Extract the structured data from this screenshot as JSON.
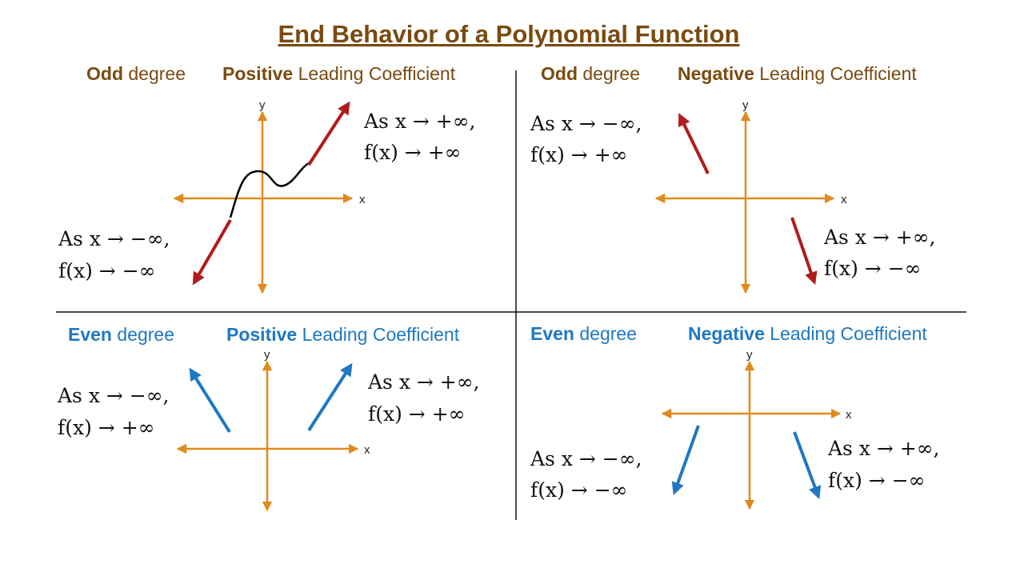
{
  "title": "End Behavior of a Polynomial Function",
  "panels": [
    {
      "degree_bold": "Odd",
      "degree_rest": "degree",
      "coef_bold": "Positive",
      "coef_rest": "Leading Coefficient",
      "x_axis": "x",
      "y_axis": "y",
      "left_note": [
        "As x → −∞,",
        "f(x) → −∞"
      ],
      "right_note": [
        "As x → +∞,",
        "f(x) → +∞"
      ]
    },
    {
      "degree_bold": "Odd",
      "degree_rest": "degree",
      "coef_bold": "Negative",
      "coef_rest": "Leading Coefficient",
      "x_axis": "x",
      "y_axis": "y",
      "left_note": [
        "As x → −∞,",
        "f(x) → +∞"
      ],
      "right_note": [
        "As x → +∞,",
        "f(x) → −∞"
      ]
    },
    {
      "degree_bold": "Even",
      "degree_rest": "degree",
      "coef_bold": "Positive",
      "coef_rest": "Leading Coefficient",
      "x_axis": "x",
      "y_axis": "y",
      "left_note": [
        "As x → −∞,",
        "f(x) → +∞"
      ],
      "right_note": [
        "As x → +∞,",
        "f(x) → +∞"
      ]
    },
    {
      "degree_bold": "Even",
      "degree_rest": "degree",
      "coef_bold": "Negative",
      "coef_rest": "Leading Coefficient",
      "x_axis": "x",
      "y_axis": "y",
      "left_note": [
        "As x → −∞,",
        "f(x) → −∞"
      ],
      "right_note": [
        "As x → +∞,",
        "f(x) → −∞"
      ]
    }
  ]
}
